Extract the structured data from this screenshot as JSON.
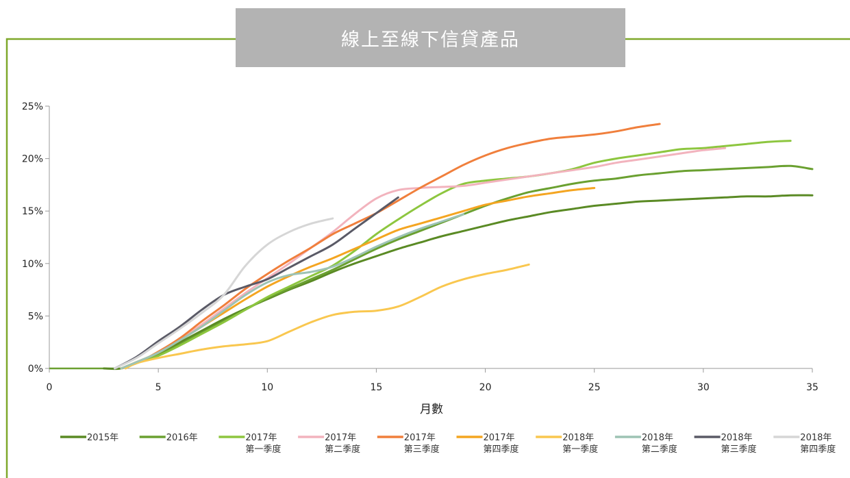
{
  "header": {
    "title": "線上至線下信貸產品"
  },
  "colors": {
    "frame": "#7ea82a",
    "title_bg": "#b3b3b3",
    "axis": "#999999"
  },
  "chart_data": {
    "type": "line",
    "title": "線上至線下信貸產品",
    "xlabel": "月數",
    "ylabel": "",
    "xlim": [
      0,
      35
    ],
    "ylim": [
      0,
      25
    ],
    "x_ticks": [
      "0",
      "5",
      "10",
      "15",
      "20",
      "25",
      "30",
      "35"
    ],
    "y_ticks": [
      "0%",
      "5%",
      "10%",
      "15%",
      "20%",
      "25%"
    ],
    "grid": false,
    "legend_position": "bottom",
    "series": [
      {
        "name": "2015年",
        "name2": "",
        "color": "#5a8a24",
        "points": [
          [
            2.5,
            0
          ],
          [
            3.3,
            0
          ],
          [
            4,
            0.6
          ],
          [
            5,
            1.4
          ],
          [
            6,
            2.5
          ],
          [
            7,
            3.6
          ],
          [
            8,
            4.7
          ],
          [
            9,
            5.7
          ],
          [
            10,
            6.6
          ],
          [
            11,
            7.5
          ],
          [
            12,
            8.3
          ],
          [
            13,
            9.2
          ],
          [
            14,
            10
          ],
          [
            15,
            10.7
          ],
          [
            16,
            11.4
          ],
          [
            17,
            12
          ],
          [
            18,
            12.6
          ],
          [
            19,
            13.1
          ],
          [
            20,
            13.6
          ],
          [
            21,
            14.1
          ],
          [
            22,
            14.5
          ],
          [
            23,
            14.9
          ],
          [
            24,
            15.2
          ],
          [
            25,
            15.5
          ],
          [
            26,
            15.7
          ],
          [
            27,
            15.9
          ],
          [
            28,
            16
          ],
          [
            29,
            16.1
          ],
          [
            30,
            16.2
          ],
          [
            31,
            16.3
          ],
          [
            32,
            16.4
          ],
          [
            33,
            16.4
          ],
          [
            34,
            16.5
          ],
          [
            35,
            16.5
          ]
        ]
      },
      {
        "name": "2016年",
        "name2": "",
        "color": "#6aa030",
        "points": [
          [
            3.3,
            0
          ],
          [
            4,
            0.5
          ],
          [
            5,
            1.3
          ],
          [
            6,
            2.3
          ],
          [
            7,
            3.4
          ],
          [
            8,
            4.5
          ],
          [
            9,
            5.6
          ],
          [
            10,
            6.7
          ],
          [
            11,
            7.6
          ],
          [
            12,
            8.5
          ],
          [
            13,
            9.4
          ],
          [
            14,
            10.4
          ],
          [
            15,
            11.4
          ],
          [
            16,
            12.3
          ],
          [
            17,
            13.1
          ],
          [
            18,
            13.9
          ],
          [
            19,
            14.7
          ],
          [
            20,
            15.5
          ],
          [
            21,
            16.2
          ],
          [
            22,
            16.8
          ],
          [
            23,
            17.2
          ],
          [
            24,
            17.6
          ],
          [
            25,
            17.9
          ],
          [
            26,
            18.1
          ],
          [
            27,
            18.4
          ],
          [
            28,
            18.6
          ],
          [
            29,
            18.8
          ],
          [
            30,
            18.9
          ],
          [
            31,
            19
          ],
          [
            32,
            19.1
          ],
          [
            33,
            19.2
          ],
          [
            34,
            19.3
          ],
          [
            35,
            19
          ]
        ]
      },
      {
        "name": "2017年",
        "name2": "第一季度",
        "color": "#8dc63f",
        "points": [
          [
            3.3,
            0
          ],
          [
            4,
            0.5
          ],
          [
            5,
            1.2
          ],
          [
            6,
            2.2
          ],
          [
            7,
            3.3
          ],
          [
            8,
            4.4
          ],
          [
            9,
            5.6
          ],
          [
            10,
            6.8
          ],
          [
            11,
            7.8
          ],
          [
            12,
            8.8
          ],
          [
            13,
            9.8
          ],
          [
            14,
            11.2
          ],
          [
            15,
            12.8
          ],
          [
            16,
            14.2
          ],
          [
            17,
            15.5
          ],
          [
            18,
            16.7
          ],
          [
            19,
            17.6
          ],
          [
            20,
            17.9
          ],
          [
            21,
            18.1
          ],
          [
            22,
            18.3
          ],
          [
            23,
            18.6
          ],
          [
            24,
            19
          ],
          [
            25,
            19.6
          ],
          [
            26,
            20
          ],
          [
            27,
            20.3
          ],
          [
            28,
            20.6
          ],
          [
            29,
            20.9
          ],
          [
            30,
            21
          ],
          [
            31,
            21.2
          ],
          [
            32,
            21.4
          ],
          [
            33,
            21.6
          ],
          [
            34,
            21.7
          ]
        ]
      },
      {
        "name": "2017年",
        "name2": "第二季度",
        "color": "#f2b3bd",
        "points": [
          [
            3.3,
            0
          ],
          [
            4,
            0.6
          ],
          [
            5,
            1.5
          ],
          [
            6,
            2.8
          ],
          [
            7,
            4.2
          ],
          [
            8,
            5.7
          ],
          [
            9,
            7.2
          ],
          [
            10,
            8.6
          ],
          [
            11,
            10
          ],
          [
            12,
            11.5
          ],
          [
            13,
            13
          ],
          [
            14,
            14.7
          ],
          [
            15,
            16.2
          ],
          [
            16,
            17
          ],
          [
            17,
            17.2
          ],
          [
            18,
            17.3
          ],
          [
            19,
            17.4
          ],
          [
            20,
            17.7
          ],
          [
            21,
            18
          ],
          [
            22,
            18.3
          ],
          [
            23,
            18.6
          ],
          [
            24,
            18.9
          ],
          [
            25,
            19.2
          ],
          [
            26,
            19.6
          ],
          [
            27,
            19.9
          ],
          [
            28,
            20.2
          ],
          [
            29,
            20.5
          ],
          [
            30,
            20.8
          ],
          [
            31,
            21
          ]
        ]
      },
      {
        "name": "2017年",
        "name2": "第三季度",
        "color": "#f07f3c",
        "points": [
          [
            3.3,
            0
          ],
          [
            4,
            0.5
          ],
          [
            5,
            1.6
          ],
          [
            6,
            2.9
          ],
          [
            7,
            4.5
          ],
          [
            8,
            6
          ],
          [
            9,
            7.6
          ],
          [
            10,
            9
          ],
          [
            11,
            10.3
          ],
          [
            12,
            11.5
          ],
          [
            13,
            12.8
          ],
          [
            14,
            13.8
          ],
          [
            15,
            14.8
          ],
          [
            16,
            16
          ],
          [
            17,
            17.2
          ],
          [
            18,
            18.3
          ],
          [
            19,
            19.4
          ],
          [
            20,
            20.3
          ],
          [
            21,
            21
          ],
          [
            22,
            21.5
          ],
          [
            23,
            21.9
          ],
          [
            24,
            22.1
          ],
          [
            25,
            22.3
          ],
          [
            26,
            22.6
          ],
          [
            27,
            23
          ],
          [
            28,
            23.3
          ]
        ]
      },
      {
        "name": "2017年",
        "name2": "第四季度",
        "color": "#f4a521",
        "points": [
          [
            3.3,
            0
          ],
          [
            4,
            0.6
          ],
          [
            5,
            1.5
          ],
          [
            6,
            2.7
          ],
          [
            7,
            4
          ],
          [
            8,
            5.3
          ],
          [
            9,
            6.6
          ],
          [
            10,
            7.8
          ],
          [
            11,
            8.8
          ],
          [
            12,
            9.7
          ],
          [
            13,
            10.5
          ],
          [
            14,
            11.4
          ],
          [
            15,
            12.3
          ],
          [
            16,
            13.2
          ],
          [
            17,
            13.8
          ],
          [
            18,
            14.4
          ],
          [
            19,
            15
          ],
          [
            20,
            15.6
          ],
          [
            21,
            16
          ],
          [
            22,
            16.4
          ],
          [
            23,
            16.7
          ],
          [
            24,
            17
          ],
          [
            25,
            17.2
          ]
        ]
      },
      {
        "name": "2018年",
        "name2": "第一季度",
        "color": "#f9c74f",
        "points": [
          [
            3.5,
            0
          ],
          [
            4,
            0.5
          ],
          [
            5,
            1
          ],
          [
            6,
            1.4
          ],
          [
            7,
            1.8
          ],
          [
            8,
            2.1
          ],
          [
            9,
            2.3
          ],
          [
            10,
            2.6
          ],
          [
            11,
            3.5
          ],
          [
            12,
            4.4
          ],
          [
            13,
            5.1
          ],
          [
            14,
            5.4
          ],
          [
            15,
            5.5
          ],
          [
            16,
            5.9
          ],
          [
            17,
            6.8
          ],
          [
            18,
            7.8
          ],
          [
            19,
            8.5
          ],
          [
            20,
            9
          ],
          [
            21,
            9.4
          ],
          [
            22,
            9.9
          ]
        ]
      },
      {
        "name": "2018年",
        "name2": "第二季度",
        "color": "#9dc3b4",
        "points": [
          [
            3.3,
            0
          ],
          [
            4,
            0.6
          ],
          [
            5,
            1.5
          ],
          [
            6,
            2.7
          ],
          [
            7,
            4
          ],
          [
            8,
            5.5
          ],
          [
            9,
            7
          ],
          [
            10,
            8.2
          ],
          [
            11,
            8.9
          ],
          [
            12,
            9.2
          ],
          [
            13,
            9.7
          ],
          [
            14,
            10.6
          ],
          [
            15,
            11.6
          ],
          [
            16,
            12.5
          ],
          [
            17,
            13.3
          ],
          [
            18,
            14
          ],
          [
            19,
            14.7
          ]
        ]
      },
      {
        "name": "2018年",
        "name2": "第三季度",
        "color": "#5a5a66",
        "points": [
          [
            3,
            0
          ],
          [
            4,
            1.1
          ],
          [
            5,
            2.6
          ],
          [
            6,
            4
          ],
          [
            7,
            5.6
          ],
          [
            8,
            7
          ],
          [
            9,
            7.8
          ],
          [
            10,
            8.5
          ],
          [
            11,
            9.6
          ],
          [
            12,
            10.7
          ],
          [
            13,
            11.8
          ],
          [
            14,
            13.3
          ],
          [
            15,
            14.8
          ],
          [
            16,
            16.3
          ]
        ]
      },
      {
        "name": "2018年",
        "name2": "第四季度",
        "color": "#d6d6d6",
        "points": [
          [
            3,
            0
          ],
          [
            4,
            1
          ],
          [
            5,
            2.4
          ],
          [
            6,
            3.8
          ],
          [
            7,
            5.3
          ],
          [
            8,
            7
          ],
          [
            9,
            9.8
          ],
          [
            10,
            11.8
          ],
          [
            11,
            13
          ],
          [
            12,
            13.8
          ],
          [
            13,
            14.3
          ]
        ]
      }
    ]
  }
}
